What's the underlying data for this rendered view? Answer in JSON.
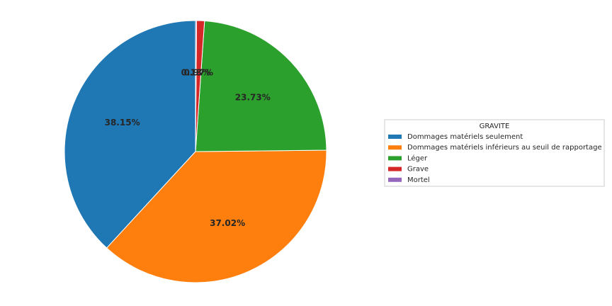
{
  "chart_data": {
    "type": "pie",
    "legend_title": "GRAVITE",
    "categories": [
      "Dommages matériels seulement",
      "Dommages matériels inférieurs au seuil de rapportage",
      "Léger",
      "Grave",
      "Mortel"
    ],
    "values": [
      38.15,
      37.02,
      23.73,
      0.97,
      0.13
    ],
    "value_labels": [
      "38.15%",
      "37.02%",
      "23.73%",
      "0.97%",
      "0.13%"
    ],
    "colors": [
      "#1f77b4",
      "#ff7f0e",
      "#2ca02c",
      "#d62728",
      "#9467bd"
    ],
    "legend": "right"
  }
}
